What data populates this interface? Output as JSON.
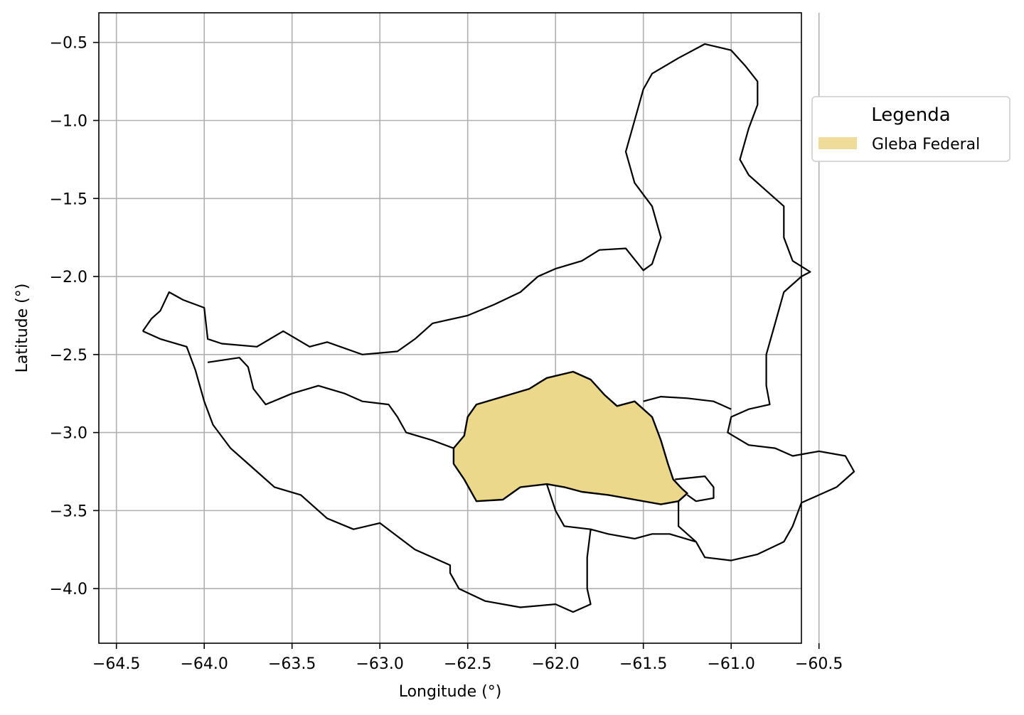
{
  "chart_data": {
    "type": "map",
    "xlabel": "Longitude (°)",
    "ylabel": "Latitude (°)",
    "xlim": [
      -64.6,
      -60.6
    ],
    "ylim": [
      -4.35,
      -0.31
    ],
    "grid": true,
    "x_ticks": [
      -64.5,
      -64.0,
      -63.5,
      -63.0,
      -62.5,
      -62.0,
      -61.5,
      -61.0,
      -60.5
    ],
    "x_tick_labels": [
      "−64.5",
      "−64.0",
      "−63.5",
      "−63.0",
      "−62.5",
      "−62.0",
      "−61.5",
      "−61.0",
      "−60.5"
    ],
    "y_ticks": [
      -0.5,
      -1.0,
      -1.5,
      -2.0,
      -2.5,
      -3.0,
      -3.5,
      -4.0
    ],
    "y_tick_labels": [
      "−0.5",
      "−1.0",
      "−1.5",
      "−2.0",
      "−2.5",
      "−3.0",
      "−3.5",
      "−4.0"
    ],
    "legend": {
      "title": "Legenda",
      "placement": "outside-right-top",
      "entries": [
        {
          "label": "Gleba Federal",
          "color": "#f0dc9a"
        }
      ]
    },
    "series": [
      {
        "name": "Gleba Federal",
        "kind": "polygon",
        "fill": "#ecd88a",
        "edge": "#000000",
        "coordinates": [
          [
            -62.58,
            -3.1
          ],
          [
            -62.52,
            -3.02
          ],
          [
            -62.5,
            -2.9
          ],
          [
            -62.45,
            -2.82
          ],
          [
            -62.3,
            -2.77
          ],
          [
            -62.15,
            -2.72
          ],
          [
            -62.05,
            -2.65
          ],
          [
            -61.9,
            -2.61
          ],
          [
            -61.8,
            -2.66
          ],
          [
            -61.72,
            -2.76
          ],
          [
            -61.65,
            -2.83
          ],
          [
            -61.55,
            -2.8
          ],
          [
            -61.45,
            -2.9
          ],
          [
            -61.4,
            -3.05
          ],
          [
            -61.36,
            -3.2
          ],
          [
            -61.33,
            -3.3
          ],
          [
            -61.28,
            -3.36
          ],
          [
            -61.25,
            -3.39
          ],
          [
            -61.3,
            -3.44
          ],
          [
            -61.4,
            -3.46
          ],
          [
            -61.55,
            -3.43
          ],
          [
            -61.7,
            -3.4
          ],
          [
            -61.85,
            -3.38
          ],
          [
            -61.95,
            -3.35
          ],
          [
            -62.05,
            -3.33
          ],
          [
            -62.2,
            -3.35
          ],
          [
            -62.3,
            -3.43
          ],
          [
            -62.45,
            -3.44
          ],
          [
            -62.52,
            -3.3
          ],
          [
            -62.58,
            -3.2
          ]
        ]
      },
      {
        "name": "",
        "kind": "outline",
        "coordinates": [
          [
            -64.35,
            -2.35
          ],
          [
            -64.3,
            -2.27
          ],
          [
            -64.25,
            -2.22
          ],
          [
            -64.2,
            -2.1
          ],
          [
            -64.12,
            -2.15
          ],
          [
            -64.0,
            -2.2
          ],
          [
            -63.98,
            -2.4
          ],
          [
            -63.9,
            -2.43
          ],
          [
            -63.7,
            -2.45
          ],
          [
            -63.55,
            -2.35
          ],
          [
            -63.4,
            -2.45
          ],
          [
            -63.3,
            -2.42
          ],
          [
            -63.1,
            -2.5
          ],
          [
            -62.9,
            -2.48
          ],
          [
            -62.8,
            -2.4
          ],
          [
            -62.7,
            -2.3
          ],
          [
            -62.5,
            -2.25
          ],
          [
            -62.35,
            -2.18
          ],
          [
            -62.2,
            -2.1
          ],
          [
            -62.1,
            -2.0
          ],
          [
            -62.0,
            -1.95
          ],
          [
            -61.85,
            -1.9
          ],
          [
            -61.75,
            -1.83
          ],
          [
            -61.6,
            -1.82
          ],
          [
            -61.5,
            -1.96
          ],
          [
            -61.45,
            -1.92
          ],
          [
            -61.4,
            -1.75
          ],
          [
            -61.45,
            -1.55
          ],
          [
            -61.55,
            -1.4
          ],
          [
            -61.6,
            -1.2
          ],
          [
            -61.55,
            -1.0
          ],
          [
            -61.5,
            -0.8
          ],
          [
            -61.45,
            -0.7
          ],
          [
            -61.3,
            -0.6
          ],
          [
            -61.15,
            -0.51
          ],
          [
            -61.0,
            -0.55
          ],
          [
            -60.92,
            -0.65
          ],
          [
            -60.85,
            -0.75
          ],
          [
            -60.85,
            -0.9
          ],
          [
            -60.9,
            -1.05
          ],
          [
            -60.95,
            -1.25
          ],
          [
            -60.9,
            -1.35
          ],
          [
            -60.8,
            -1.45
          ],
          [
            -60.7,
            -1.55
          ],
          [
            -60.7,
            -1.75
          ],
          [
            -60.65,
            -1.9
          ],
          [
            -60.55,
            -1.97
          ],
          [
            -60.6,
            -2.0
          ],
          [
            -60.7,
            -2.1
          ],
          [
            -60.75,
            -2.3
          ],
          [
            -60.8,
            -2.5
          ],
          [
            -60.8,
            -2.7
          ],
          [
            -60.78,
            -2.82
          ],
          [
            -60.9,
            -2.85
          ],
          [
            -61.0,
            -2.9
          ],
          [
            -61.02,
            -3.0
          ],
          [
            -60.9,
            -3.08
          ],
          [
            -60.75,
            -3.1
          ],
          [
            -60.65,
            -3.15
          ],
          [
            -60.5,
            -3.12
          ],
          [
            -60.35,
            -3.15
          ],
          [
            -60.3,
            -3.25
          ],
          [
            -60.4,
            -3.35
          ],
          [
            -60.6,
            -3.45
          ],
          [
            -60.65,
            -3.6
          ],
          [
            -60.7,
            -3.7
          ],
          [
            -60.85,
            -3.78
          ],
          [
            -61.0,
            -3.82
          ],
          [
            -61.15,
            -3.8
          ],
          [
            -61.2,
            -3.7
          ],
          [
            -61.35,
            -3.65
          ],
          [
            -61.45,
            -3.65
          ],
          [
            -61.55,
            -3.68
          ],
          [
            -61.7,
            -3.65
          ],
          [
            -61.8,
            -3.62
          ],
          [
            -61.82,
            -3.8
          ],
          [
            -61.82,
            -4.0
          ],
          [
            -61.8,
            -4.1
          ],
          [
            -61.9,
            -4.15
          ],
          [
            -62.0,
            -4.1
          ],
          [
            -62.2,
            -4.12
          ],
          [
            -62.4,
            -4.08
          ],
          [
            -62.55,
            -4.0
          ],
          [
            -62.6,
            -3.9
          ],
          [
            -62.6,
            -3.85
          ],
          [
            -62.8,
            -3.75
          ],
          [
            -63.0,
            -3.58
          ],
          [
            -63.15,
            -3.62
          ],
          [
            -63.3,
            -3.55
          ],
          [
            -63.45,
            -3.4
          ],
          [
            -63.6,
            -3.35
          ],
          [
            -63.7,
            -3.25
          ],
          [
            -63.85,
            -3.1
          ],
          [
            -63.95,
            -2.95
          ],
          [
            -64.0,
            -2.8
          ],
          [
            -64.05,
            -2.6
          ],
          [
            -64.1,
            -2.45
          ],
          [
            -64.25,
            -2.4
          ],
          [
            -64.35,
            -2.35
          ]
        ]
      },
      {
        "name": "",
        "kind": "outline",
        "coordinates": [
          [
            -63.98,
            -2.55
          ],
          [
            -63.8,
            -2.52
          ],
          [
            -63.75,
            -2.58
          ],
          [
            -63.72,
            -2.72
          ],
          [
            -63.65,
            -2.82
          ],
          [
            -63.5,
            -2.75
          ],
          [
            -63.35,
            -2.7
          ],
          [
            -63.2,
            -2.75
          ],
          [
            -63.1,
            -2.8
          ],
          [
            -62.95,
            -2.82
          ],
          [
            -62.9,
            -2.9
          ],
          [
            -62.85,
            -3.0
          ],
          [
            -62.7,
            -3.05
          ],
          [
            -62.58,
            -3.1
          ]
        ]
      },
      {
        "name": "",
        "kind": "outline",
        "coordinates": [
          [
            -61.5,
            -2.8
          ],
          [
            -61.4,
            -2.77
          ],
          [
            -61.25,
            -2.78
          ],
          [
            -61.1,
            -2.8
          ],
          [
            -61.0,
            -2.85
          ]
        ]
      },
      {
        "name": "",
        "kind": "outline",
        "coordinates": [
          [
            -62.05,
            -3.33
          ],
          [
            -62.0,
            -3.5
          ],
          [
            -61.95,
            -3.6
          ],
          [
            -61.8,
            -3.62
          ]
        ]
      },
      {
        "name": "",
        "kind": "outline",
        "coordinates": [
          [
            -61.3,
            -3.44
          ],
          [
            -61.3,
            -3.6
          ],
          [
            -61.2,
            -3.7
          ]
        ]
      },
      {
        "name": "",
        "kind": "outline",
        "coordinates": [
          [
            -61.32,
            -3.3
          ],
          [
            -61.15,
            -3.28
          ],
          [
            -61.1,
            -3.35
          ],
          [
            -61.1,
            -3.42
          ],
          [
            -61.2,
            -3.44
          ],
          [
            -61.25,
            -3.4
          ]
        ]
      }
    ]
  }
}
